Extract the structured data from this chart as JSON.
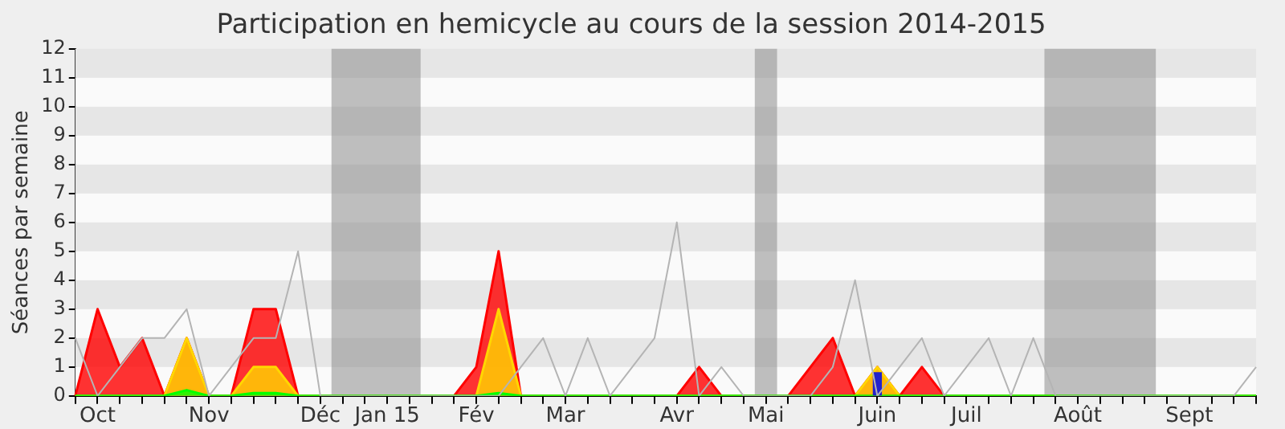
{
  "chart_data": {
    "type": "area",
    "title": "Participation en hemicycle au cours de la session 2014-2015",
    "ylabel": "Séances par semaine",
    "categories": [
      null,
      "Oct",
      null,
      null,
      null,
      null,
      "Nov",
      null,
      null,
      null,
      null,
      "Déc",
      null,
      null,
      "Jan 15",
      null,
      null,
      null,
      "Fév",
      null,
      null,
      null,
      "Mar",
      null,
      null,
      null,
      null,
      "Avr",
      null,
      null,
      null,
      "Mai",
      null,
      null,
      null,
      null,
      "Juin",
      null,
      null,
      null,
      "Juil",
      null,
      null,
      null,
      null,
      "Août",
      null,
      null,
      null,
      null,
      "Sept",
      null,
      null,
      null
    ],
    "ylim": [
      0,
      12
    ],
    "yticks": [
      0,
      1,
      2,
      3,
      4,
      5,
      6,
      7,
      8,
      9,
      10,
      11,
      12
    ],
    "legend": false,
    "marker": "none",
    "series": [
      {
        "type": "line",
        "color": "#b4b4b4",
        "values": [
          2,
          0,
          1,
          2,
          2,
          3,
          0,
          1,
          2,
          2,
          5,
          0,
          0,
          0,
          0,
          0,
          0,
          0,
          0,
          0,
          1,
          2,
          0,
          2,
          0,
          1,
          2,
          6,
          0,
          1,
          0,
          0,
          0,
          0,
          1,
          4,
          0,
          1,
          2,
          0,
          1,
          2,
          0,
          2,
          0,
          0,
          0,
          0,
          0,
          0,
          0,
          0,
          0,
          1
        ]
      },
      {
        "color": "#ff0000",
        "values": [
          0,
          3,
          1,
          2,
          0,
          2,
          0,
          0,
          3,
          3,
          0,
          0,
          0,
          0,
          0,
          0,
          0,
          0,
          1,
          5,
          0,
          0,
          0,
          0,
          0,
          0,
          0,
          0,
          1,
          0,
          0,
          0,
          0,
          1,
          2,
          0,
          1,
          0,
          1,
          0,
          0,
          0,
          0,
          0,
          0,
          0,
          0,
          0,
          0,
          0,
          0,
          0,
          0,
          0
        ]
      },
      {
        "color": "#ffd700",
        "values": [
          0,
          0,
          0,
          0,
          0,
          2,
          0,
          0,
          1,
          1,
          0,
          0,
          0,
          0,
          0,
          0,
          0,
          0,
          0,
          3,
          0,
          0,
          0,
          0,
          0,
          0,
          0,
          0,
          0,
          0,
          0,
          0,
          0,
          0,
          0,
          0,
          1,
          0,
          0,
          0,
          0,
          0,
          0,
          0,
          0,
          0,
          0,
          0,
          0,
          0,
          0,
          0,
          0,
          0
        ]
      },
      {
        "color": "#00ff00",
        "values": [
          0,
          0,
          0,
          0,
          0,
          0.2,
          0,
          0,
          0.1,
          0.1,
          0,
          0,
          0,
          0,
          0,
          0,
          0,
          0,
          0,
          0.1,
          0,
          0,
          0,
          0,
          0,
          0,
          0,
          0,
          0,
          0,
          0,
          0,
          0,
          0,
          0,
          0,
          0,
          0,
          0,
          0,
          0,
          0,
          0,
          0,
          0,
          0,
          0,
          0,
          0,
          0,
          0,
          0,
          0,
          0
        ]
      },
      {
        "type": "bar",
        "color": "#2222cc",
        "values": [
          null,
          null,
          null,
          null,
          null,
          null,
          null,
          null,
          null,
          null,
          null,
          null,
          null,
          null,
          null,
          null,
          null,
          null,
          null,
          null,
          null,
          null,
          null,
          null,
          null,
          null,
          null,
          null,
          null,
          null,
          null,
          null,
          null,
          null,
          null,
          null,
          0.8,
          null,
          null,
          null,
          null,
          null,
          null,
          null,
          null,
          null,
          null,
          null,
          null,
          null,
          null,
          null,
          null,
          null
        ]
      }
    ]
  }
}
